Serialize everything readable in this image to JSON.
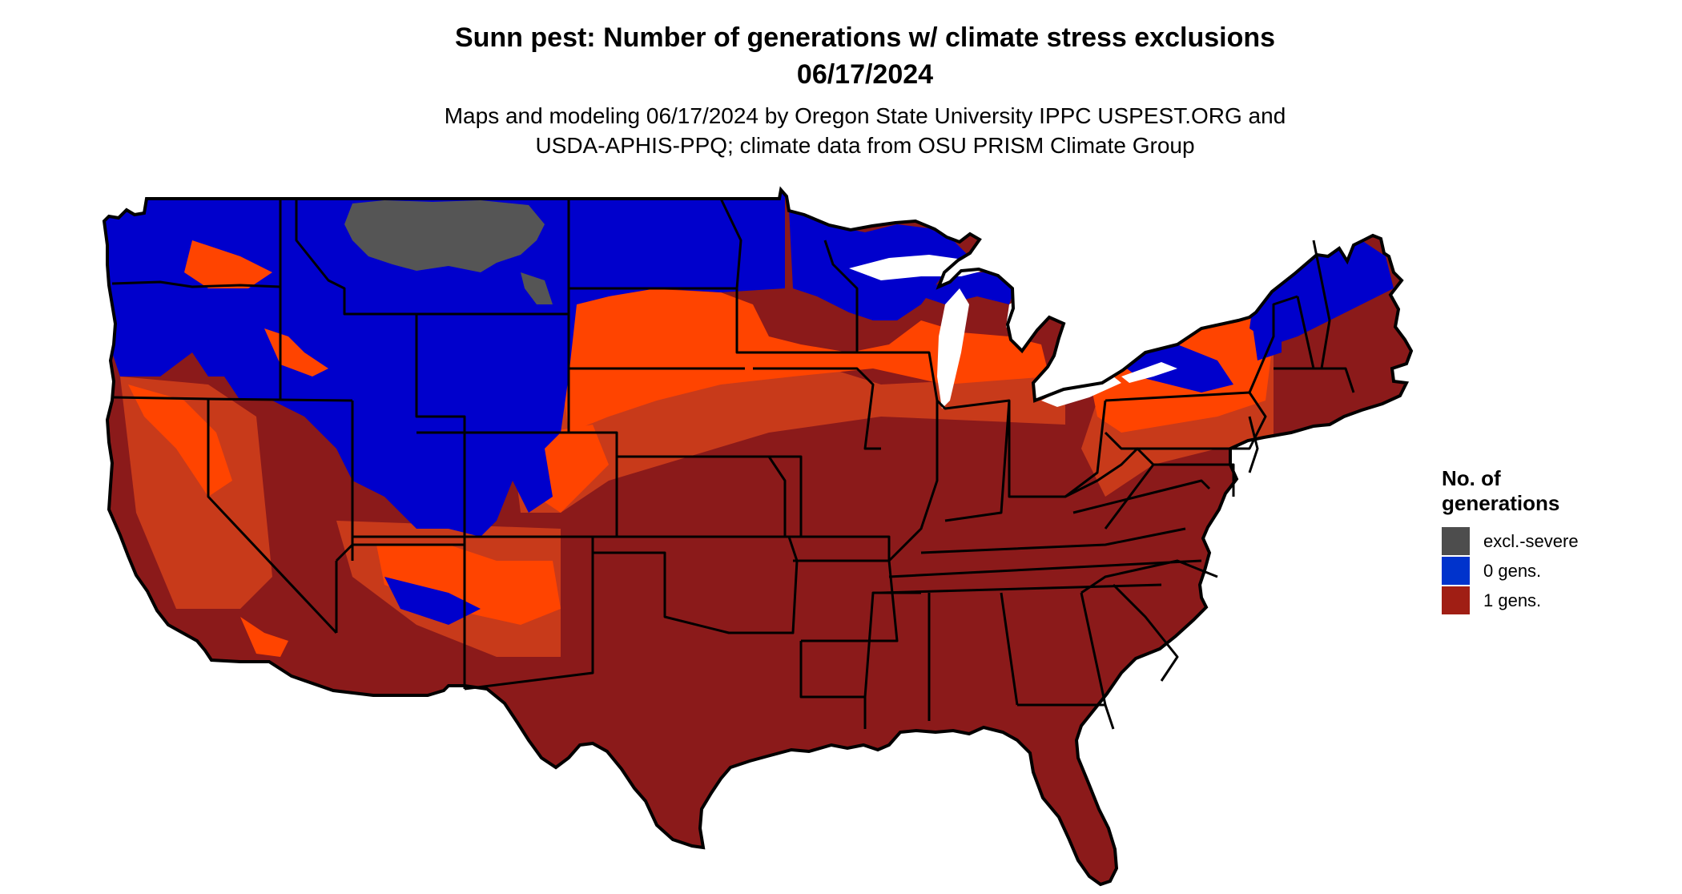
{
  "title": {
    "line1": "Sunn pest: Number of generations w/ climate stress exclusions",
    "line2": "06/17/2024"
  },
  "subtitle": {
    "line1": "Maps and modeling 06/17/2024 by Oregon State University IPPC USPEST.ORG and",
    "line2": "USDA-APHIS-PPQ; climate data from OSU PRISM Climate Group"
  },
  "legend": {
    "title_line1": "No. of",
    "title_line2": "generations",
    "items": [
      {
        "label": "excl.-severe",
        "color": "#4d4d4d"
      },
      {
        "label": "0 gens.",
        "color": "#0033cc"
      },
      {
        "label": "1 gens.",
        "color": "#a01e14"
      }
    ]
  },
  "map": {
    "region": "Contiguous United States",
    "colors": {
      "excluded_severe": "#555555",
      "zero_generations": "#0000cc",
      "one_generation": "#8b1a1a",
      "transition_orange": "#ff4400",
      "transition_dark": "#c83a1a",
      "state_border": "#000000"
    }
  }
}
